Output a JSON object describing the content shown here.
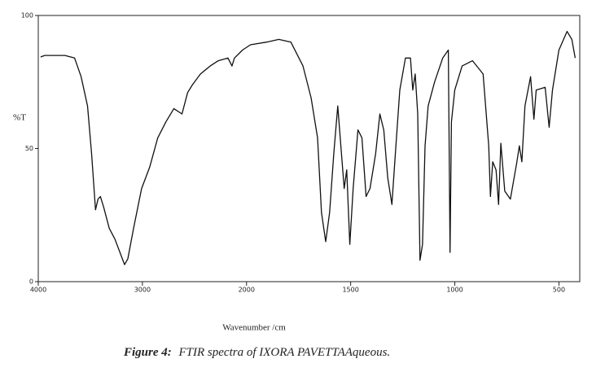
{
  "chart_data": {
    "type": "line",
    "ylabel": "%T",
    "xlabel": "Wavenumber /cm",
    "caption_label": "Figure 4:",
    "caption_text": "FTIR spectra of IXORA PAVETTAAqueous.",
    "xlim": [
      4000,
      400
    ],
    "xticks": [
      4000,
      3000,
      2000,
      1500,
      1000,
      500
    ],
    "ylim": [
      0,
      100
    ],
    "yticks": [
      0,
      50,
      100
    ],
    "color": "#111111",
    "x": [
      3977,
      3938,
      3744,
      3651,
      3589,
      3527,
      3488,
      3450,
      3426,
      3403,
      3372,
      3318,
      3264,
      3202,
      3171,
      3140,
      3085,
      3008,
      2930,
      2853,
      2775,
      2698,
      2620,
      2566,
      2519,
      2442,
      2349,
      2271,
      2178,
      2140,
      2116,
      2039,
      1981,
      1903,
      1845,
      1787,
      1729,
      1690,
      1659,
      1640,
      1620,
      1601,
      1581,
      1562,
      1547,
      1531,
      1519,
      1504,
      1488,
      1465,
      1446,
      1426,
      1407,
      1380,
      1360,
      1341,
      1322,
      1302,
      1283,
      1264,
      1237,
      1213,
      1202,
      1190,
      1178,
      1167,
      1155,
      1143,
      1128,
      1097,
      1058,
      1031,
      1023,
      1016,
      1000,
      965,
      915,
      864,
      837,
      829,
      818,
      802,
      790,
      779,
      760,
      733,
      702,
      690,
      678,
      663,
      636,
      620,
      609,
      566,
      547,
      531,
      500,
      461,
      438,
      422
    ],
    "values": [
      84.4,
      85,
      85,
      84,
      77,
      66,
      48,
      27,
      31,
      32,
      28,
      20,
      16,
      9.5,
      6.4,
      8.6,
      20,
      35,
      43,
      54,
      60,
      65,
      63,
      71,
      74,
      78,
      81,
      83,
      84,
      81,
      84,
      87,
      89,
      90,
      91,
      90,
      81,
      69,
      54,
      26,
      15,
      26,
      48,
      66,
      51,
      35,
      42,
      14,
      35,
      57,
      54,
      32,
      35,
      48,
      63,
      57,
      39,
      29,
      51,
      72,
      84,
      84,
      72,
      78,
      63,
      8,
      14,
      51,
      66,
      75,
      84,
      87,
      11,
      60,
      72,
      81,
      83,
      78,
      51,
      32,
      45,
      42,
      29,
      52,
      34,
      31,
      45,
      51,
      45,
      66,
      77,
      61,
      72,
      73,
      58,
      72,
      87,
      94,
      91,
      84
    ]
  }
}
